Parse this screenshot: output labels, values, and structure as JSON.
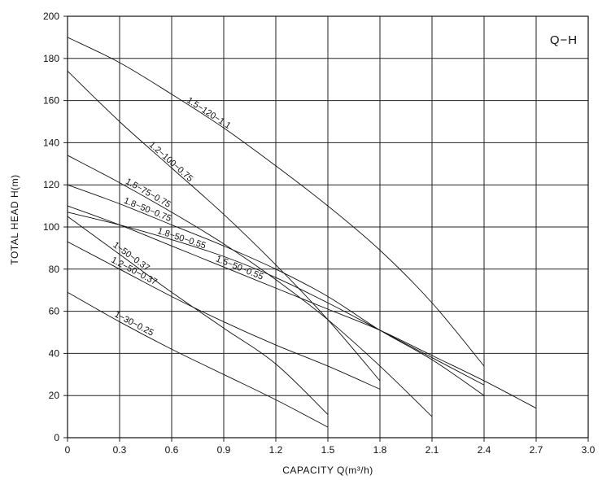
{
  "chart_data": {
    "type": "line",
    "title": "",
    "badge": "Q−H",
    "xlabel": "CAPACITY  Q(m³/h)",
    "ylabel": "TOTAL HEAD H(m)",
    "xlim": [
      0,
      3.0
    ],
    "ylim": [
      0,
      200
    ],
    "x_ticks": [
      "0",
      "0.3",
      "0.6",
      "0.9",
      "1.2",
      "1.5",
      "1.8",
      "2.1",
      "2.4",
      "2.7",
      "3.0"
    ],
    "y_ticks": [
      "0",
      "20",
      "40",
      "60",
      "80",
      "100",
      "120",
      "140",
      "160",
      "180",
      "200"
    ],
    "grid": true,
    "legend": "none",
    "series": [
      {
        "name": "1.5−120−1.1",
        "points": [
          [
            0,
            190
          ],
          [
            0.3,
            178
          ],
          [
            0.6,
            163
          ],
          [
            0.9,
            147
          ],
          [
            1.2,
            129
          ],
          [
            1.5,
            110
          ],
          [
            1.8,
            89
          ],
          [
            2.1,
            64
          ],
          [
            2.4,
            34
          ]
        ]
      },
      {
        "name": "1.2−100−0.75",
        "points": [
          [
            0,
            174
          ],
          [
            0.3,
            150
          ],
          [
            0.6,
            128
          ],
          [
            0.9,
            106
          ],
          [
            1.2,
            82
          ],
          [
            1.5,
            56
          ],
          [
            1.8,
            27
          ]
        ]
      },
      {
        "name": "1.5−75−0.75",
        "points": [
          [
            0,
            134
          ],
          [
            0.3,
            121
          ],
          [
            0.6,
            107
          ],
          [
            0.9,
            92
          ],
          [
            1.2,
            75
          ],
          [
            1.5,
            56
          ],
          [
            1.8,
            34
          ],
          [
            2.1,
            10
          ]
        ]
      },
      {
        "name": "1.8−50−0.75",
        "points": [
          [
            0,
            120
          ],
          [
            0.3,
            111
          ],
          [
            0.6,
            101
          ],
          [
            0.9,
            91
          ],
          [
            1.2,
            80
          ],
          [
            1.5,
            67
          ],
          [
            1.8,
            51
          ],
          [
            2.1,
            37
          ],
          [
            2.4,
            20
          ]
        ]
      },
      {
        "name": "1.8−50−0.55",
        "points": [
          [
            0,
            107
          ],
          [
            0.3,
            101
          ],
          [
            0.6,
            94
          ],
          [
            0.9,
            86
          ],
          [
            1.2,
            76
          ],
          [
            1.5,
            64
          ],
          [
            1.8,
            51
          ],
          [
            2.1,
            38
          ],
          [
            2.4,
            25
          ]
        ]
      },
      {
        "name": "1.5−50−0.55",
        "points": [
          [
            0,
            110
          ],
          [
            0.3,
            101
          ],
          [
            0.6,
            91
          ],
          [
            0.9,
            81
          ],
          [
            1.2,
            71
          ],
          [
            1.5,
            61
          ],
          [
            1.8,
            51
          ],
          [
            2.1,
            39
          ],
          [
            2.4,
            27
          ],
          [
            2.7,
            14
          ]
        ]
      },
      {
        "name": "1−50−0.37",
        "points": [
          [
            0,
            105
          ],
          [
            0.3,
            87
          ],
          [
            0.6,
            69
          ],
          [
            0.9,
            52
          ],
          [
            1.2,
            35
          ],
          [
            1.5,
            11
          ]
        ]
      },
      {
        "name": "1.2−50−0.37",
        "points": [
          [
            0,
            93
          ],
          [
            0.3,
            80
          ],
          [
            0.6,
            67
          ],
          [
            0.9,
            55
          ],
          [
            1.2,
            44
          ],
          [
            1.5,
            34
          ],
          [
            1.8,
            23
          ]
        ]
      },
      {
        "name": "1−30−0.25",
        "points": [
          [
            0,
            69
          ],
          [
            0.3,
            55
          ],
          [
            0.6,
            42
          ],
          [
            0.9,
            30
          ],
          [
            1.2,
            18
          ],
          [
            1.5,
            5
          ]
        ]
      }
    ]
  }
}
